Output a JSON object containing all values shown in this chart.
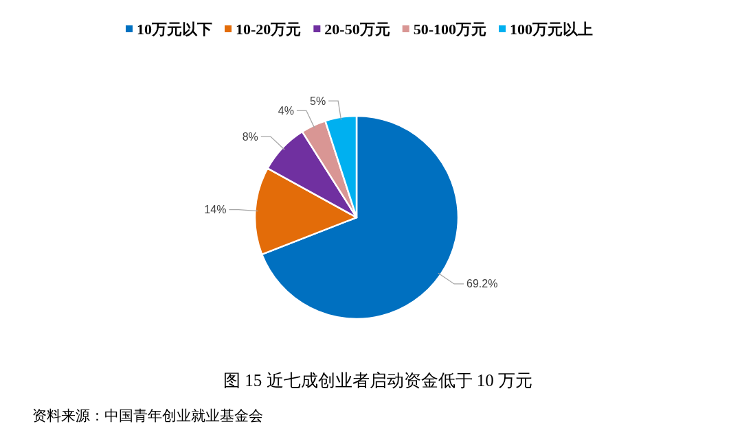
{
  "chart_data": {
    "type": "pie",
    "title": "图 15 近七成创业者启动资金低于 10 万元",
    "categories": [
      "10万元以下",
      "10-20万元",
      "20-50万元",
      "50-100万元",
      "100万元以上"
    ],
    "values": [
      69.2,
      14,
      8,
      4,
      5
    ],
    "colors": [
      "#0070c0",
      "#e36c09",
      "#7030a0",
      "#d99694",
      "#00b0f0"
    ],
    "value_labels": [
      "69.2%",
      "14%",
      "8%",
      "4%",
      "5%"
    ],
    "legend": "top",
    "annotations": [
      "资料来源：中国青年创业就业基金会"
    ]
  }
}
